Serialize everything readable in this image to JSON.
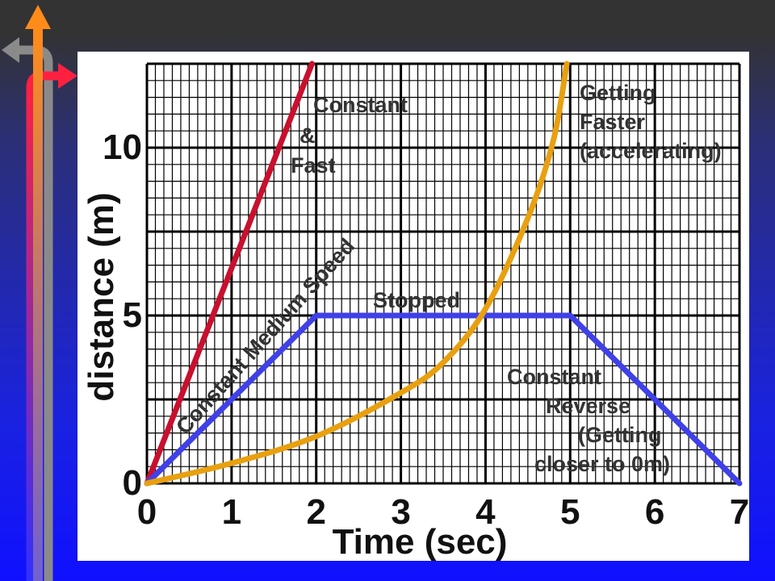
{
  "chart_data": {
    "type": "line",
    "xlabel": "Time (sec)",
    "ylabel": "distance (m)",
    "xlim": [
      0,
      7
    ],
    "ylim": [
      0,
      12.5
    ],
    "grid": true,
    "x_ticks": [
      "0",
      "1",
      "2",
      "3",
      "4",
      "5",
      "6",
      "7"
    ],
    "y_ticks": [
      "0",
      "5",
      "10"
    ],
    "y_tick_values": [
      0,
      5,
      10
    ],
    "series": [
      {
        "color": "#c8102e",
        "points": [
          [
            0,
            0
          ],
          [
            1.95,
            12.5
          ]
        ]
      },
      {
        "color": "#4040e8",
        "points": [
          [
            0,
            0
          ],
          [
            2,
            5
          ],
          [
            5,
            5
          ],
          [
            7,
            0
          ]
        ]
      },
      {
        "color": "#e8a010",
        "points": [
          [
            0,
            0
          ],
          [
            1,
            0.6
          ],
          [
            2,
            1.4
          ],
          [
            3,
            2.7
          ],
          [
            3.5,
            3.6
          ],
          [
            4,
            5.2
          ],
          [
            4.5,
            7.9
          ],
          [
            4.8,
            10.2
          ],
          [
            4.96,
            12.5
          ]
        ]
      }
    ],
    "annotations": [
      {
        "lines": [
          "Constant",
          "&",
          "Fast"
        ]
      },
      {
        "lines": [
          "Getting",
          "Faster",
          "(accelerating)"
        ]
      },
      {
        "lines": [
          "Constant Medium Speed"
        ]
      },
      {
        "lines": [
          "Stopped"
        ]
      },
      {
        "lines": [
          "Constant",
          "Reverse",
          "(Getting",
          "closer to 0m)"
        ]
      }
    ]
  }
}
